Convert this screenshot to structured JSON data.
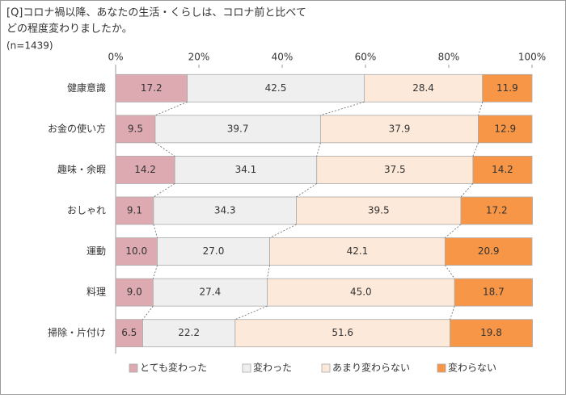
{
  "chart_data": {
    "type": "stacked-bar-horizontal-percent",
    "title": [
      "[Q]コロナ禍以降、あなたの生活・くらしは、コロナ前と比べて",
      "どの程度変わりましたか。"
    ],
    "subtitle": "(n=1439)",
    "categories": [
      "健康意識",
      "お金の使い方",
      "趣味・余暇",
      "おしゃれ",
      "運動",
      "料理",
      "掃除・片付け"
    ],
    "series": [
      {
        "name": "とても変わった",
        "color": "#dcaab0",
        "values": [
          17.2,
          9.5,
          14.2,
          9.1,
          10.0,
          9.0,
          6.5
        ],
        "value_labels": [
          "17.2",
          "9.5",
          "14.2",
          "9.1",
          "10.0",
          "9.0",
          "6.5"
        ]
      },
      {
        "name": "変わった",
        "color": "#efefef",
        "values": [
          42.5,
          39.7,
          34.1,
          34.3,
          27.0,
          27.4,
          22.2
        ],
        "value_labels": [
          "42.5",
          "39.7",
          "34.1",
          "34.3",
          "27.0",
          "27.4",
          "22.2"
        ]
      },
      {
        "name": "あまり変わらない",
        "color": "#fde9d9",
        "values": [
          28.4,
          37.9,
          37.5,
          39.5,
          42.1,
          45.0,
          51.6
        ],
        "value_labels": [
          "28.4",
          "37.9",
          "37.5",
          "39.5",
          "42.1",
          "45.0",
          "51.6"
        ]
      },
      {
        "name": "変わらない",
        "color": "#f79646",
        "values": [
          11.9,
          12.9,
          14.2,
          17.2,
          20.9,
          18.7,
          19.8
        ],
        "value_labels": [
          "11.9",
          "12.9",
          "14.2",
          "17.2",
          "20.9",
          "18.7",
          "19.8"
        ]
      }
    ],
    "xlim": [
      0,
      100
    ],
    "xticks": [
      {
        "value": 0,
        "label": "0%"
      },
      {
        "value": 20,
        "label": "20%"
      },
      {
        "value": 40,
        "label": "40%"
      },
      {
        "value": 60,
        "label": "60%"
      },
      {
        "value": 80,
        "label": "80%"
      },
      {
        "value": 100,
        "label": "100%"
      }
    ],
    "legend": "bottom"
  }
}
